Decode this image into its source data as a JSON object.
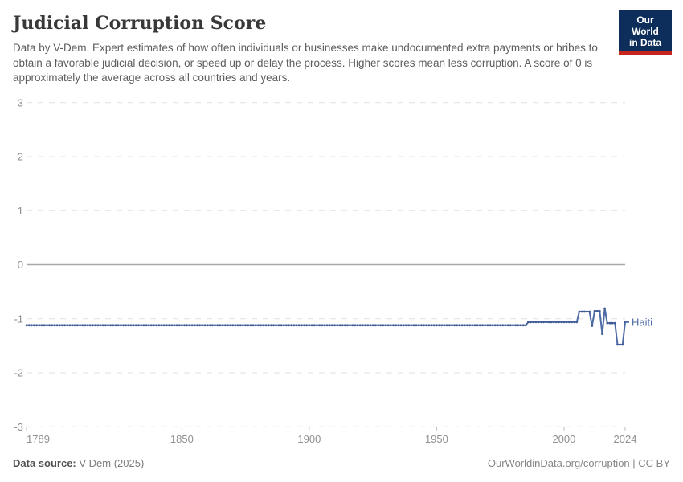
{
  "header": {
    "title": "Judicial Corruption Score",
    "subtitle": "Data by V-Dem. Expert estimates of how often individuals or businesses make undocumented extra payments or bribes to obtain a favorable judicial decision, or speed up or delay the process. Higher scores mean less corruption. A score of 0 is approximately the average across all countries and years.",
    "logo": {
      "line1": "Our World",
      "line2": "in Data",
      "bg_color": "#0d2e5a",
      "accent_color": "#c7261f"
    }
  },
  "chart_data": {
    "type": "line",
    "title": "Judicial Corruption Score",
    "entity": "Haiti",
    "x_range": [
      1789,
      2024
    ],
    "ylim": [
      -3,
      3
    ],
    "y_ticks": [
      3,
      2,
      1,
      0,
      -1,
      -2,
      -3
    ],
    "x_ticks": [
      1789,
      1850,
      1900,
      1950,
      2000,
      2024
    ],
    "grid": "horizontal dashed gridlines, solid zero line, no vertical axis line",
    "legend_position": "label at end of line",
    "series": [
      {
        "name": "Haiti",
        "color": "#4d6ba5",
        "marker_color": "#3f5b97",
        "segments": [
          {
            "from": 1789,
            "to": 1985,
            "value": -1.12
          },
          {
            "from": 1986,
            "to": 2005,
            "value": -1.06
          },
          {
            "from": 2006,
            "to": 2010,
            "value": -0.87
          },
          {
            "from": 2011,
            "to": 2011,
            "value": -1.13
          },
          {
            "from": 2012,
            "to": 2014,
            "value": -0.86
          },
          {
            "from": 2015,
            "to": 2015,
            "value": -1.28
          },
          {
            "from": 2016,
            "to": 2016,
            "value": -0.81
          },
          {
            "from": 2017,
            "to": 2020,
            "value": -1.08
          },
          {
            "from": 2021,
            "to": 2023,
            "value": -1.48
          },
          {
            "from": 2024,
            "to": 2024,
            "value": -1.06
          }
        ]
      }
    ],
    "colors": {
      "gridline": "#e0e0e0",
      "zero_line": "#a8a8a8",
      "tick_mark": "#bcbcbc",
      "axis_text": "#8f8f8f"
    }
  },
  "footer": {
    "source_label": "Data source:",
    "source_value": " V-Dem (2025)",
    "attribution": "OurWorldinData.org/corruption | CC BY"
  }
}
